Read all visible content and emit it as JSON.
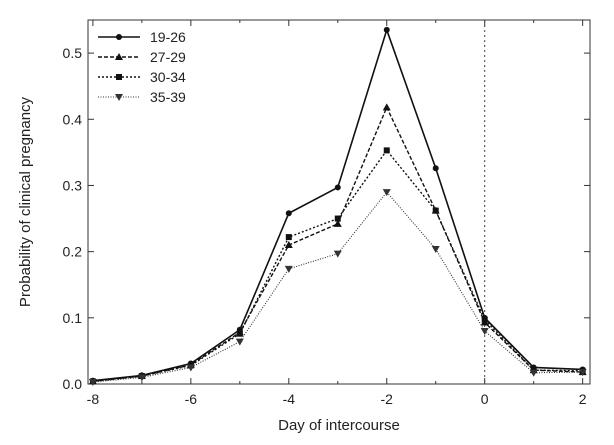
{
  "chart_data": {
    "type": "line",
    "title": "",
    "xlabel": "Day of intercourse",
    "ylabel": "Probability of clinical pregnancy",
    "xlim": [
      -8.1,
      2.15
    ],
    "ylim": [
      0,
      0.55
    ],
    "xticks": [
      -8,
      -6,
      -4,
      -2,
      0,
      2
    ],
    "xtick_labels": [
      "-8",
      "-6",
      "-4",
      "-2",
      "0",
      "2"
    ],
    "yticks": [
      0,
      0.1,
      0.2,
      0.3,
      0.4,
      0.5
    ],
    "ytick_labels": [
      "0.0",
      "0.1",
      "0.2",
      "0.3",
      "0.4",
      "0.5"
    ],
    "grid": false,
    "legend_position": "top-left",
    "reference_line": {
      "x": 0,
      "style": "dotted"
    },
    "x": [
      -8,
      -7,
      -6,
      -5,
      -4,
      -3,
      -2,
      -1,
      0,
      1,
      2
    ],
    "series": [
      {
        "name": "19-26",
        "marker": "circle",
        "dash": "solid",
        "color": "#111111",
        "values": [
          0.005,
          0.013,
          0.031,
          0.082,
          0.258,
          0.297,
          0.535,
          0.326,
          0.1,
          0.025,
          0.022
        ]
      },
      {
        "name": "27-29",
        "marker": "triangle-up",
        "dash": "dashed",
        "color": "#111111",
        "values": [
          0.004,
          0.012,
          0.029,
          0.078,
          0.21,
          0.242,
          0.418,
          0.262,
          0.093,
          0.021,
          0.018
        ]
      },
      {
        "name": "30-34",
        "marker": "square",
        "dash": "dotted",
        "color": "#111111",
        "values": [
          0.004,
          0.012,
          0.028,
          0.076,
          0.222,
          0.25,
          0.353,
          0.262,
          0.097,
          0.021,
          0.02
        ]
      },
      {
        "name": "35-39",
        "marker": "triangle-down",
        "dash": "fine-dotted",
        "color": "#333333",
        "values": [
          0.003,
          0.01,
          0.025,
          0.064,
          0.174,
          0.197,
          0.29,
          0.204,
          0.08,
          0.017,
          0.018
        ]
      }
    ]
  }
}
